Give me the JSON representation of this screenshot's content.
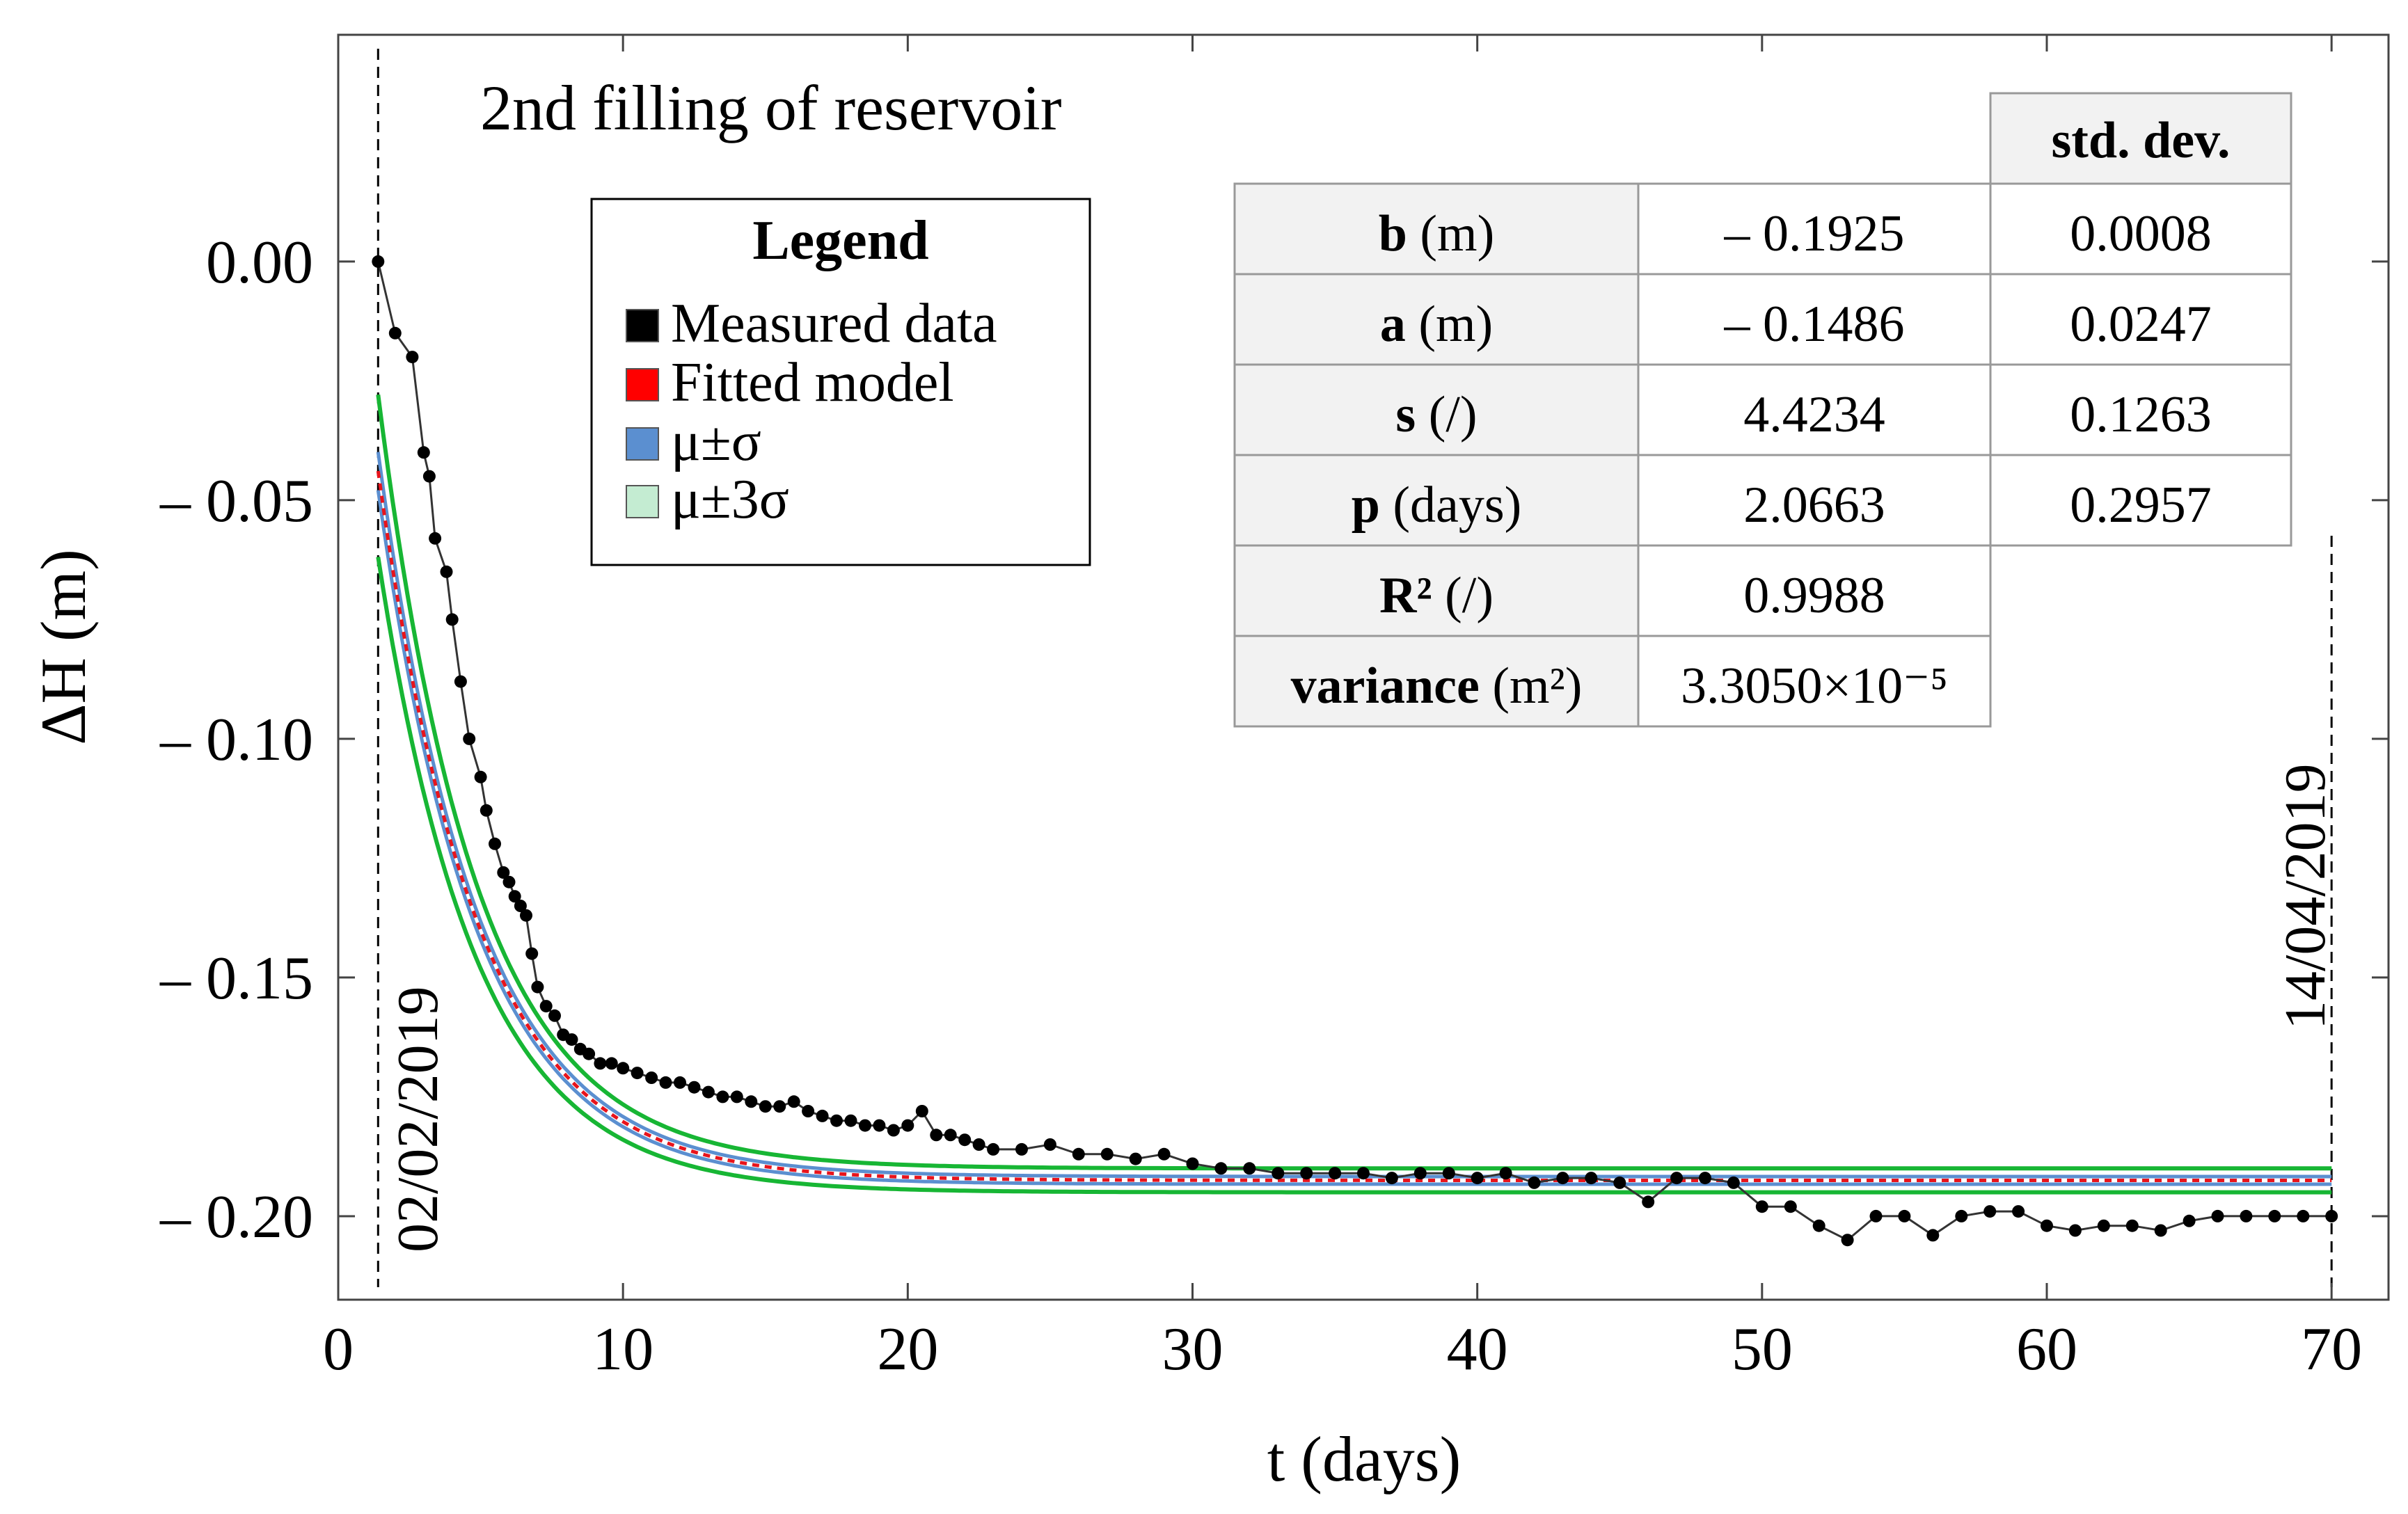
{
  "chart_data": {
    "type": "scatter",
    "title": "2nd filling of reservoir",
    "xlabel": "t (days)",
    "ylabel": "ΔH (m)",
    "xlim": [
      0,
      72
    ],
    "ylim": [
      -0.2175,
      0.0475
    ],
    "xticks": [
      0,
      10,
      20,
      30,
      40,
      50,
      60,
      70
    ],
    "yticks": [
      0.0,
      -0.05,
      -0.1,
      -0.15,
      -0.2
    ],
    "ytick_labels": [
      "0.00",
      "– 0.05",
      "– 0.10",
      "– 0.15",
      "– 0.20"
    ],
    "start_marker": {
      "t": 1.4,
      "label": "02/02/2019"
    },
    "end_marker": {
      "t": 70.0,
      "label": "14/04/2019"
    },
    "model": {
      "b": -0.1925,
      "a": -0.1486,
      "s": 4.4234,
      "p": 2.0663,
      "t0": 1.4,
      "form": "b - a*exp(-((t - t0)/p)/s*2)"
    },
    "legend": {
      "title": "Legend",
      "entries": [
        {
          "label": "Measured data",
          "color": "#000000"
        },
        {
          "label": "Fitted model",
          "color": "#ff0000"
        },
        {
          "label": "μ±σ",
          "color": "#5b8fd0"
        },
        {
          "label": "μ±3σ",
          "color": "#c4ecd2"
        }
      ]
    },
    "series": [
      {
        "name": "Measured data",
        "color": "#000000",
        "x": [
          1.4,
          2.0,
          2.6,
          3.0,
          3.2,
          3.4,
          3.8,
          4.0,
          4.3,
          4.6,
          5.0,
          5.2,
          5.5,
          5.8,
          6.0,
          6.2,
          6.4,
          6.6,
          6.8,
          7.0,
          7.3,
          7.6,
          7.9,
          8.2,
          8.5,
          8.8,
          9.2,
          9.6,
          10.0,
          10.5,
          11.0,
          11.5,
          12.0,
          12.5,
          13.0,
          13.5,
          14.0,
          14.5,
          15.0,
          15.5,
          16.0,
          16.5,
          17.0,
          17.5,
          18.0,
          18.5,
          19.0,
          19.5,
          20.0,
          20.5,
          21.0,
          21.5,
          22.0,
          22.5,
          23.0,
          24.0,
          25.0,
          26.0,
          27.0,
          28.0,
          29.0,
          30.0,
          31.0,
          32.0,
          33.0,
          34.0,
          35.0,
          36.0,
          37.0,
          38.0,
          39.0,
          40.0,
          41.0,
          42.0,
          43.0,
          44.0,
          45.0,
          46.0,
          47.0,
          48.0,
          49.0,
          50.0,
          51.0,
          52.0,
          53.0,
          54.0,
          55.0,
          56.0,
          57.0,
          58.0,
          59.0,
          60.0,
          61.0,
          62.0,
          63.0,
          64.0,
          65.0,
          66.0,
          67.0,
          68.0,
          69.0,
          70.0
        ],
        "y": [
          0.0,
          -0.015,
          -0.02,
          -0.04,
          -0.045,
          -0.058,
          -0.065,
          -0.075,
          -0.088,
          -0.1,
          -0.108,
          -0.115,
          -0.122,
          -0.128,
          -0.13,
          -0.133,
          -0.135,
          -0.137,
          -0.145,
          -0.152,
          -0.156,
          -0.158,
          -0.162,
          -0.163,
          -0.165,
          -0.166,
          -0.168,
          -0.168,
          -0.169,
          -0.17,
          -0.171,
          -0.172,
          -0.172,
          -0.173,
          -0.174,
          -0.175,
          -0.175,
          -0.176,
          -0.177,
          -0.177,
          -0.176,
          -0.178,
          -0.179,
          -0.18,
          -0.18,
          -0.181,
          -0.181,
          -0.182,
          -0.181,
          -0.178,
          -0.183,
          -0.183,
          -0.184,
          -0.185,
          -0.186,
          -0.186,
          -0.185,
          -0.187,
          -0.187,
          -0.188,
          -0.187,
          -0.189,
          -0.19,
          -0.19,
          -0.191,
          -0.191,
          -0.191,
          -0.191,
          -0.192,
          -0.191,
          -0.191,
          -0.192,
          -0.191,
          -0.193,
          -0.192,
          -0.192,
          -0.193,
          -0.197,
          -0.192,
          -0.192,
          -0.193,
          -0.198,
          -0.198,
          -0.202,
          -0.205,
          -0.2,
          -0.2,
          -0.204,
          -0.2,
          -0.199,
          -0.199,
          -0.202,
          -0.203,
          -0.202,
          -0.202,
          -0.203,
          -0.201,
          -0.2,
          -0.2,
          -0.2,
          -0.2,
          -0.2
        ]
      }
    ],
    "table": {
      "header": [
        "",
        "",
        "std. dev."
      ],
      "rows": [
        {
          "name": "b",
          "unit": "(m)",
          "value": "– 0.1925",
          "std": "0.0008"
        },
        {
          "name": "a",
          "unit": "(m)",
          "value": "– 0.1486",
          "std": "0.0247"
        },
        {
          "name": "s",
          "unit": "(/)",
          "value": "4.4234",
          "std": "0.1263"
        },
        {
          "name": "p",
          "unit": "(days)",
          "value": "2.0663",
          "std": "0.2957"
        },
        {
          "name": "R²",
          "unit": "(/)",
          "value": "0.9988",
          "std": ""
        },
        {
          "name": "variance",
          "unit": "(m²)",
          "value": "3.3050×10⁻⁵",
          "std": ""
        }
      ]
    }
  }
}
